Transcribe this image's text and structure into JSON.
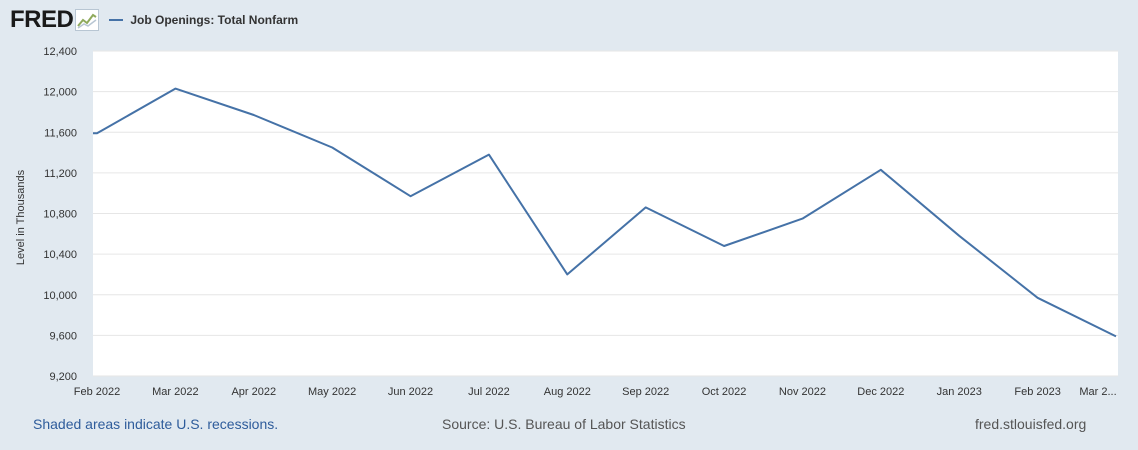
{
  "header": {
    "logo_text": "FRED",
    "legend_label": "Job Openings: Total Nonfarm"
  },
  "footer": {
    "recession_note": "Shaded areas indicate U.S. recessions.",
    "source": "Source: U.S. Bureau of Labor Statistics",
    "site": "fred.stlouisfed.org"
  },
  "colors": {
    "series": "#4572a7",
    "page_background": "#e1e9f0",
    "plot_background": "#ffffff",
    "gridline": "#e6e6e6"
  },
  "chart_data": {
    "type": "line",
    "title": "",
    "xlabel": "",
    "ylabel": "Level in Thousands",
    "grid": true,
    "legend": "top-left",
    "ylim": [
      9200,
      12400
    ],
    "y_ticks": [
      "9,200",
      "9,600",
      "10,000",
      "10,400",
      "10,800",
      "11,200",
      "11,600",
      "12,000",
      "12,400"
    ],
    "x_tick_labels": [
      "Feb 2022",
      "Mar 2022",
      "Apr 2022",
      "May 2022",
      "Jun 2022",
      "Jul 2022",
      "Aug 2022",
      "Sep 2022",
      "Oct 2022",
      "Nov 2022",
      "Dec 2022",
      "Jan 2023",
      "Feb 2023",
      "Mar 2..."
    ],
    "series": [
      {
        "name": "Job Openings: Total Nonfarm",
        "x": [
          "2022-02",
          "2022-03",
          "2022-04",
          "2022-05",
          "2022-06",
          "2022-07",
          "2022-08",
          "2022-09",
          "2022-10",
          "2022-11",
          "2022-12",
          "2023-01",
          "2023-02",
          "2023-03"
        ],
        "values": [
          11590,
          12030,
          11770,
          11450,
          10970,
          11380,
          10200,
          10860,
          10480,
          10750,
          11230,
          10580,
          9970,
          9590
        ]
      }
    ]
  }
}
